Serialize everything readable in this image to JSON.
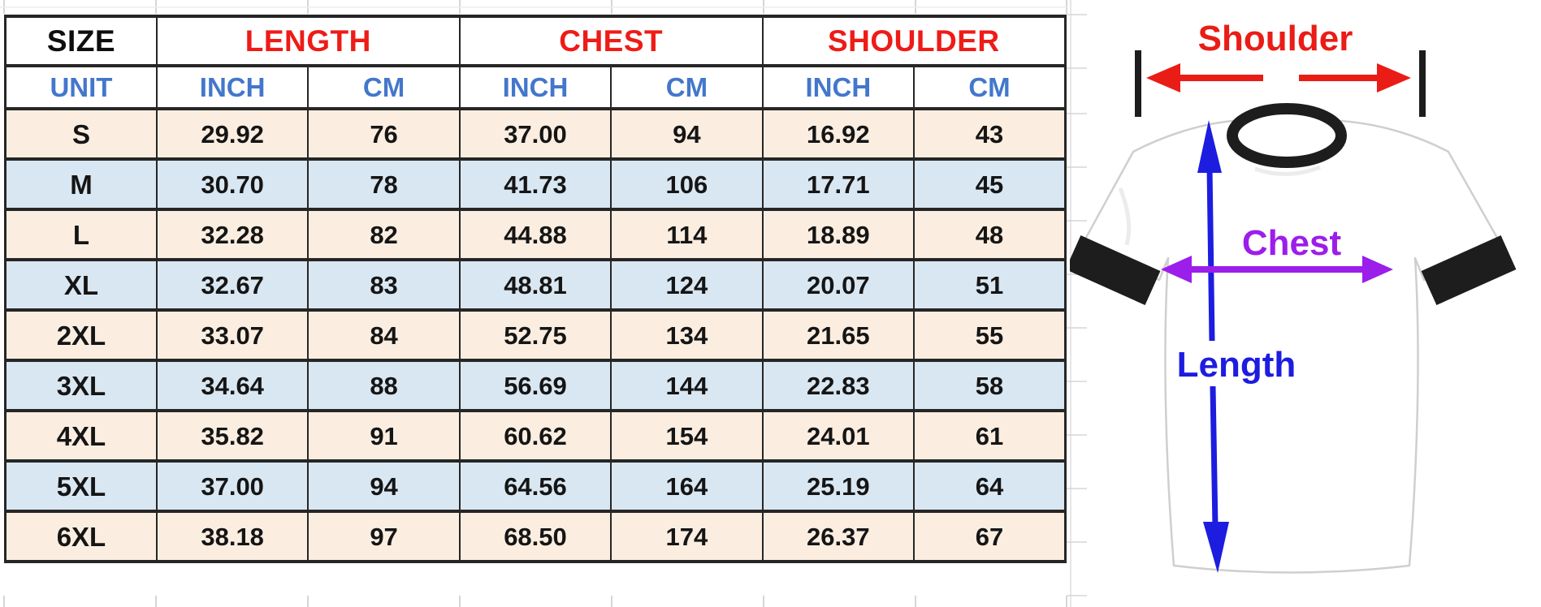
{
  "colors": {
    "headerRed": "#ee1b17",
    "headerBlue": "#4377cb",
    "rowCream": "#fbeee1",
    "rowBlue": "#d9e7f2",
    "borderDark": "#262626",
    "arrowRed": "#ea1c16",
    "arrowBlue": "#1d1de0",
    "arrowPurple": "#9c1eea",
    "shirtBlack": "#1d1d1d",
    "shirtOutline": "#cfcfcf"
  },
  "chart_data": {
    "type": "table",
    "headers": {
      "size": "SIZE",
      "length": "LENGTH",
      "chest": "CHEST",
      "shoulder": "SHOULDER"
    },
    "units": [
      "UNIT",
      "INCH",
      "CM",
      "INCH",
      "CM",
      "INCH",
      "CM"
    ],
    "rows": [
      {
        "size": "S",
        "length_inch": "29.92",
        "length_cm": "76",
        "chest_inch": "37.00",
        "chest_cm": "94",
        "shoulder_inch": "16.92",
        "shoulder_cm": "43"
      },
      {
        "size": "M",
        "length_inch": "30.70",
        "length_cm": "78",
        "chest_inch": "41.73",
        "chest_cm": "106",
        "shoulder_inch": "17.71",
        "shoulder_cm": "45"
      },
      {
        "size": "L",
        "length_inch": "32.28",
        "length_cm": "82",
        "chest_inch": "44.88",
        "chest_cm": "114",
        "shoulder_inch": "18.89",
        "shoulder_cm": "48"
      },
      {
        "size": "XL",
        "length_inch": "32.67",
        "length_cm": "83",
        "chest_inch": "48.81",
        "chest_cm": "124",
        "shoulder_inch": "20.07",
        "shoulder_cm": "51"
      },
      {
        "size": "2XL",
        "length_inch": "33.07",
        "length_cm": "84",
        "chest_inch": "52.75",
        "chest_cm": "134",
        "shoulder_inch": "21.65",
        "shoulder_cm": "55"
      },
      {
        "size": "3XL",
        "length_inch": "34.64",
        "length_cm": "88",
        "chest_inch": "56.69",
        "chest_cm": "144",
        "shoulder_inch": "22.83",
        "shoulder_cm": "58"
      },
      {
        "size": "4XL",
        "length_inch": "35.82",
        "length_cm": "91",
        "chest_inch": "60.62",
        "chest_cm": "154",
        "shoulder_inch": "24.01",
        "shoulder_cm": "61"
      },
      {
        "size": "5XL",
        "length_inch": "37.00",
        "length_cm": "94",
        "chest_inch": "64.56",
        "chest_cm": "164",
        "shoulder_inch": "25.19",
        "shoulder_cm": "64"
      },
      {
        "size": "6XL",
        "length_inch": "38.18",
        "length_cm": "97",
        "chest_inch": "68.50",
        "chest_cm": "174",
        "shoulder_inch": "26.37",
        "shoulder_cm": "67"
      }
    ]
  },
  "diagram": {
    "shoulder_label": "Shoulder",
    "chest_label": "Chest",
    "length_label": "Length"
  }
}
